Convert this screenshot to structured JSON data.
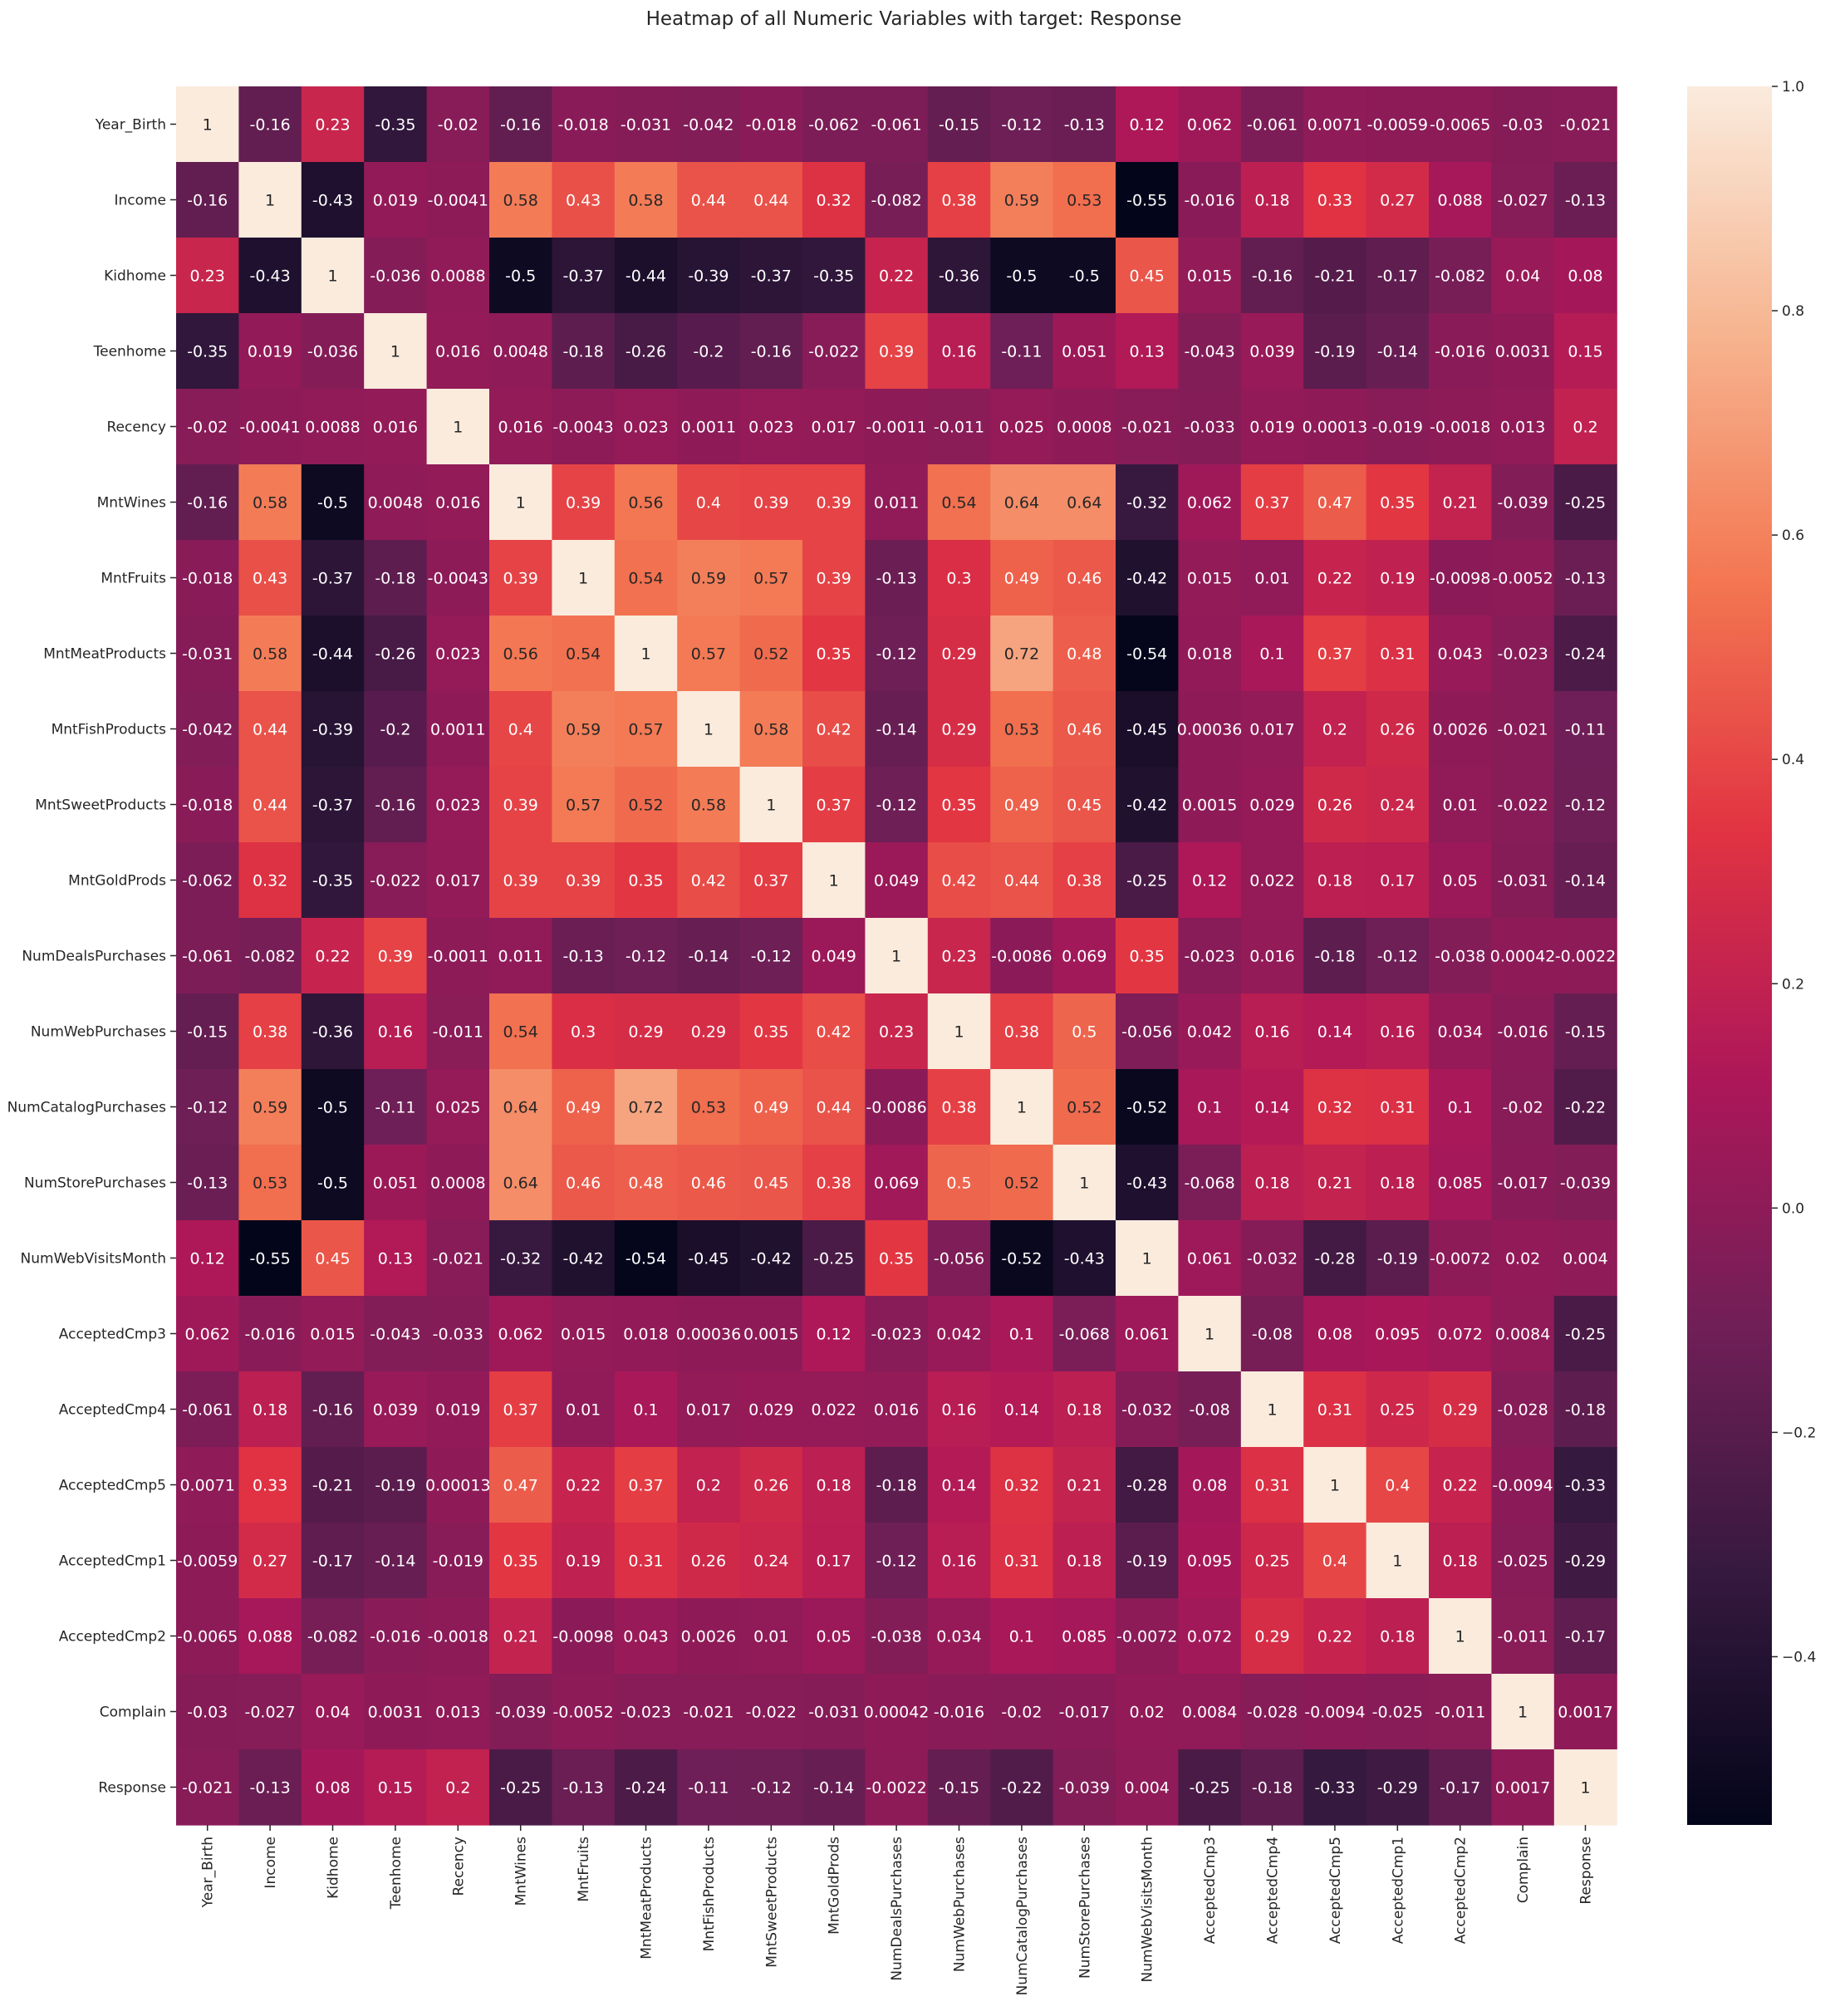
{
  "chart_data": {
    "type": "heatmap",
    "title": "Heatmap of all Numeric Variables with target: Response",
    "variables": [
      "Year_Birth",
      "Income",
      "Kidhome",
      "Teenhome",
      "Recency",
      "MntWines",
      "MntFruits",
      "MntMeatProducts",
      "MntFishProducts",
      "MntSweetProducts",
      "MntGoldProds",
      "NumDealsPurchases",
      "NumWebPurchases",
      "NumCatalogPurchases",
      "NumStorePurchases",
      "NumWebVisitsMonth",
      "AcceptedCmp3",
      "AcceptedCmp4",
      "AcceptedCmp5",
      "AcceptedCmp1",
      "AcceptedCmp2",
      "Complain",
      "Response"
    ],
    "annotations": [
      [
        "1",
        "-0.16",
        "0.23",
        "-0.35",
        "-0.02",
        "-0.16",
        "-0.018",
        "-0.031",
        "-0.042",
        "-0.018",
        "-0.062",
        "-0.061",
        "-0.15",
        "-0.12",
        "-0.13",
        "0.12",
        "0.062",
        "-0.061",
        "0.0071",
        "-0.0059",
        "-0.0065",
        "-0.03",
        "-0.021"
      ],
      [
        "-0.16",
        "1",
        "-0.43",
        "0.019",
        "-0.0041",
        "0.58",
        "0.43",
        "0.58",
        "0.44",
        "0.44",
        "0.32",
        "-0.082",
        "0.38",
        "0.59",
        "0.53",
        "-0.55",
        "-0.016",
        "0.18",
        "0.33",
        "0.27",
        "0.088",
        "-0.027",
        "-0.13"
      ],
      [
        "0.23",
        "-0.43",
        "1",
        "-0.036",
        "0.0088",
        "-0.5",
        "-0.37",
        "-0.44",
        "-0.39",
        "-0.37",
        "-0.35",
        "0.22",
        "-0.36",
        "-0.5",
        "-0.5",
        "0.45",
        "0.015",
        "-0.16",
        "-0.21",
        "-0.17",
        "-0.082",
        "0.04",
        "0.08"
      ],
      [
        "-0.35",
        "0.019",
        "-0.036",
        "1",
        "0.016",
        "0.0048",
        "-0.18",
        "-0.26",
        "-0.2",
        "-0.16",
        "-0.022",
        "0.39",
        "0.16",
        "-0.11",
        "0.051",
        "0.13",
        "-0.043",
        "0.039",
        "-0.19",
        "-0.14",
        "-0.016",
        "0.0031",
        "0.15"
      ],
      [
        "-0.02",
        "-0.0041",
        "0.0088",
        "0.016",
        "1",
        "0.016",
        "-0.0043",
        "0.023",
        "0.0011",
        "0.023",
        "0.017",
        "-0.0011",
        "-0.011",
        "0.025",
        "0.0008",
        "-0.021",
        "-0.033",
        "0.019",
        "0.00013",
        "-0.019",
        "-0.0018",
        "0.013",
        "0.2"
      ],
      [
        "-0.16",
        "0.58",
        "-0.5",
        "0.0048",
        "0.016",
        "1",
        "0.39",
        "0.56",
        "0.4",
        "0.39",
        "0.39",
        "0.011",
        "0.54",
        "0.64",
        "0.64",
        "-0.32",
        "0.062",
        "0.37",
        "0.47",
        "0.35",
        "0.21",
        "-0.039",
        "-0.25"
      ],
      [
        "-0.018",
        "0.43",
        "-0.37",
        "-0.18",
        "-0.0043",
        "0.39",
        "1",
        "0.54",
        "0.59",
        "0.57",
        "0.39",
        "-0.13",
        "0.3",
        "0.49",
        "0.46",
        "-0.42",
        "0.015",
        "0.01",
        "0.22",
        "0.19",
        "-0.0098",
        "-0.0052",
        "-0.13"
      ],
      [
        "-0.031",
        "0.58",
        "-0.44",
        "-0.26",
        "0.023",
        "0.56",
        "0.54",
        "1",
        "0.57",
        "0.52",
        "0.35",
        "-0.12",
        "0.29",
        "0.72",
        "0.48",
        "-0.54",
        "0.018",
        "0.1",
        "0.37",
        "0.31",
        "0.043",
        "-0.023",
        "-0.24"
      ],
      [
        "-0.042",
        "0.44",
        "-0.39",
        "-0.2",
        "0.0011",
        "0.4",
        "0.59",
        "0.57",
        "1",
        "0.58",
        "0.42",
        "-0.14",
        "0.29",
        "0.53",
        "0.46",
        "-0.45",
        "0.00036",
        "0.017",
        "0.2",
        "0.26",
        "0.0026",
        "-0.021",
        "-0.11"
      ],
      [
        "-0.018",
        "0.44",
        "-0.37",
        "-0.16",
        "0.023",
        "0.39",
        "0.57",
        "0.52",
        "0.58",
        "1",
        "0.37",
        "-0.12",
        "0.35",
        "0.49",
        "0.45",
        "-0.42",
        "0.0015",
        "0.029",
        "0.26",
        "0.24",
        "0.01",
        "-0.022",
        "-0.12"
      ],
      [
        "-0.062",
        "0.32",
        "-0.35",
        "-0.022",
        "0.017",
        "0.39",
        "0.39",
        "0.35",
        "0.42",
        "0.37",
        "1",
        "0.049",
        "0.42",
        "0.44",
        "0.38",
        "-0.25",
        "0.12",
        "0.022",
        "0.18",
        "0.17",
        "0.05",
        "-0.031",
        "-0.14"
      ],
      [
        "-0.061",
        "-0.082",
        "0.22",
        "0.39",
        "-0.0011",
        "0.011",
        "-0.13",
        "-0.12",
        "-0.14",
        "-0.12",
        "0.049",
        "1",
        "0.23",
        "-0.0086",
        "0.069",
        "0.35",
        "-0.023",
        "0.016",
        "-0.18",
        "-0.12",
        "-0.038",
        "0.00042",
        "-0.0022"
      ],
      [
        "-0.15",
        "0.38",
        "-0.36",
        "0.16",
        "-0.011",
        "0.54",
        "0.3",
        "0.29",
        "0.29",
        "0.35",
        "0.42",
        "0.23",
        "1",
        "0.38",
        "0.5",
        "-0.056",
        "0.042",
        "0.16",
        "0.14",
        "0.16",
        "0.034",
        "-0.016",
        "-0.15"
      ],
      [
        "-0.12",
        "0.59",
        "-0.5",
        "-0.11",
        "0.025",
        "0.64",
        "0.49",
        "0.72",
        "0.53",
        "0.49",
        "0.44",
        "-0.0086",
        "0.38",
        "1",
        "0.52",
        "-0.52",
        "0.1",
        "0.14",
        "0.32",
        "0.31",
        "0.1",
        "-0.02",
        "-0.22"
      ],
      [
        "-0.13",
        "0.53",
        "-0.5",
        "0.051",
        "0.0008",
        "0.64",
        "0.46",
        "0.48",
        "0.46",
        "0.45",
        "0.38",
        "0.069",
        "0.5",
        "0.52",
        "1",
        "-0.43",
        "-0.068",
        "0.18",
        "0.21",
        "0.18",
        "0.085",
        "-0.017",
        "-0.039"
      ],
      [
        "0.12",
        "-0.55",
        "0.45",
        "0.13",
        "-0.021",
        "-0.32",
        "-0.42",
        "-0.54",
        "-0.45",
        "-0.42",
        "-0.25",
        "0.35",
        "-0.056",
        "-0.52",
        "-0.43",
        "1",
        "0.061",
        "-0.032",
        "-0.28",
        "-0.19",
        "-0.0072",
        "0.02",
        "0.004"
      ],
      [
        "0.062",
        "-0.016",
        "0.015",
        "-0.043",
        "-0.033",
        "0.062",
        "0.015",
        "0.018",
        "0.00036",
        "0.0015",
        "0.12",
        "-0.023",
        "0.042",
        "0.1",
        "-0.068",
        "0.061",
        "1",
        "-0.08",
        "0.08",
        "0.095",
        "0.072",
        "0.0084",
        "-0.25"
      ],
      [
        "-0.061",
        "0.18",
        "-0.16",
        "0.039",
        "0.019",
        "0.37",
        "0.01",
        "0.1",
        "0.017",
        "0.029",
        "0.022",
        "0.016",
        "0.16",
        "0.14",
        "0.18",
        "-0.032",
        "-0.08",
        "1",
        "0.31",
        "0.25",
        "0.29",
        "-0.028",
        "-0.18"
      ],
      [
        "0.0071",
        "0.33",
        "-0.21",
        "-0.19",
        "0.00013",
        "0.47",
        "0.22",
        "0.37",
        "0.2",
        "0.26",
        "0.18",
        "-0.18",
        "0.14",
        "0.32",
        "0.21",
        "-0.28",
        "0.08",
        "0.31",
        "1",
        "0.4",
        "0.22",
        "-0.0094",
        "-0.33"
      ],
      [
        "-0.0059",
        "0.27",
        "-0.17",
        "-0.14",
        "-0.019",
        "0.35",
        "0.19",
        "0.31",
        "0.26",
        "0.24",
        "0.17",
        "-0.12",
        "0.16",
        "0.31",
        "0.18",
        "-0.19",
        "0.095",
        "0.25",
        "0.4",
        "1",
        "0.18",
        "-0.025",
        "-0.29"
      ],
      [
        "-0.0065",
        "0.088",
        "-0.082",
        "-0.016",
        "-0.0018",
        "0.21",
        "-0.0098",
        "0.043",
        "0.0026",
        "0.01",
        "0.05",
        "-0.038",
        "0.034",
        "0.1",
        "0.085",
        "-0.0072",
        "0.072",
        "0.29",
        "0.22",
        "0.18",
        "1",
        "-0.011",
        "-0.17"
      ],
      [
        "-0.03",
        "-0.027",
        "0.04",
        "0.0031",
        "0.013",
        "-0.039",
        "-0.0052",
        "-0.023",
        "-0.021",
        "-0.022",
        "-0.031",
        "0.00042",
        "-0.016",
        "-0.02",
        "-0.017",
        "0.02",
        "0.0084",
        "-0.028",
        "-0.0094",
        "-0.025",
        "-0.011",
        "1",
        "0.0017"
      ],
      [
        "-0.021",
        "-0.13",
        "0.08",
        "0.15",
        "0.2",
        "-0.25",
        "-0.13",
        "-0.24",
        "-0.11",
        "-0.12",
        "-0.14",
        "-0.0022",
        "-0.15",
        "-0.22",
        "-0.039",
        "0.004",
        "-0.25",
        "-0.18",
        "-0.33",
        "-0.29",
        "-0.17",
        "0.0017",
        "1"
      ]
    ],
    "colorbar": {
      "vmin": -0.55,
      "vmax": 1.0,
      "ticks": [
        "1.0",
        "0.8",
        "0.6",
        "0.4",
        "0.2",
        "0.0",
        "−0.2",
        "−0.4"
      ],
      "tick_values": [
        1.0,
        0.8,
        0.6,
        0.4,
        0.2,
        0.0,
        -0.2,
        -0.4
      ],
      "colormap": "rocket",
      "color_stops": [
        "#03051a",
        "#35193e",
        "#701f57",
        "#ad1759",
        "#e13342",
        "#f37651",
        "#f6b48f",
        "#faebdd"
      ]
    },
    "annotation_text_colors": {
      "dark_cells": "#ffffff",
      "light_cells": "#262626"
    }
  }
}
